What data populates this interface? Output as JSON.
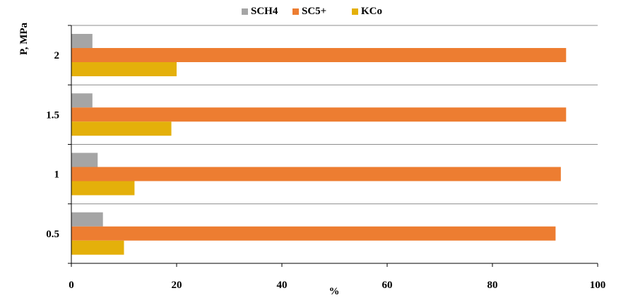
{
  "chart_data": {
    "type": "bar",
    "orientation": "horizontal",
    "categories": [
      "2",
      "1.5",
      "1",
      "0.5"
    ],
    "series": [
      {
        "name": "SCH4",
        "values": [
          4,
          4,
          5,
          6
        ],
        "color": "#a5a5a5"
      },
      {
        "name": "SC5+",
        "values": [
          94,
          94,
          93,
          92
        ],
        "color": "#ed7d31"
      },
      {
        "name": "KCo",
        "values": [
          20,
          19,
          12,
          10
        ],
        "color": "#e4b00a"
      }
    ],
    "title": "",
    "xlabel": "%",
    "ylabel": "P, MPa",
    "xlim": [
      0,
      100
    ],
    "xticks": [
      "0",
      "20",
      "40",
      "60",
      "80",
      "100"
    ],
    "grid": true,
    "legend_position": "top"
  }
}
